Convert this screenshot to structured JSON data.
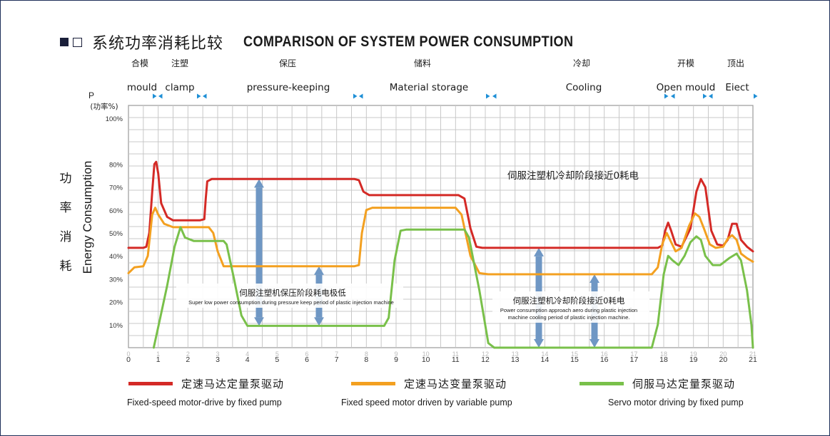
{
  "title_cn": "系统功率消耗比较",
  "title_en": "COMPARISON OF SYSTEM POWER CONSUMPTION",
  "colors": {
    "fixed": "#d42a26",
    "variable": "#f3a020",
    "servo": "#79c04a",
    "arrow": "#6f97c4",
    "grid": "#c8c8c8",
    "axis": "#9a9a9a",
    "marker": "#1e8fd6"
  },
  "chart_data": {
    "type": "line",
    "title": "COMPARISON OF SYSTEM POWER CONSUMPTION",
    "xlim": [
      0,
      21
    ],
    "ylim": [
      0,
      100
    ],
    "x_ticks": [
      "0",
      "1",
      "2",
      "3",
      "4",
      "5",
      "6",
      "7",
      "8",
      "9",
      "10",
      "11",
      "12",
      "13",
      "14",
      "15",
      "16",
      "17",
      "18",
      "19",
      "20",
      "21"
    ],
    "y_ticks": [
      "10%",
      "20%",
      "30%",
      "40%",
      "50%",
      "60%",
      "70%",
      "80%",
      "100%"
    ],
    "ylabel_top": "P",
    "ylabel_unit": "(功率%)",
    "ylabel_cn": [
      "功",
      "率",
      "消",
      "耗"
    ],
    "ylabel_en": "Energy Consumption",
    "phases": [
      {
        "cn": "合模",
        "en": "mould"
      },
      {
        "cn": "注塑",
        "en": "clamp"
      },
      {
        "cn": "保压",
        "en": "pressure-keeping"
      },
      {
        "cn": "储料",
        "en": "Material storage"
      },
      {
        "cn": "冷却",
        "en": "Cooling"
      },
      {
        "cn": "开模",
        "en": "Open mould"
      },
      {
        "cn": "顶出",
        "en": "Eiect"
      }
    ],
    "series": [
      {
        "name": "Fixed-speed motor-drive by fixed pump",
        "name_cn": "定速马达定量泵驱动",
        "color": "#d42a26",
        "points": [
          [
            0,
            43.5
          ],
          [
            0.5,
            43.5
          ],
          [
            0.6,
            44
          ],
          [
            0.7,
            50
          ],
          [
            0.8,
            68
          ],
          [
            0.87,
            80
          ],
          [
            0.93,
            81
          ],
          [
            1.0,
            76
          ],
          [
            1.1,
            63
          ],
          [
            1.3,
            57
          ],
          [
            1.5,
            55.5
          ],
          [
            2.4,
            55.5
          ],
          [
            2.55,
            56
          ],
          [
            2.6,
            65
          ],
          [
            2.65,
            72.5
          ],
          [
            2.8,
            73.5
          ],
          [
            7.6,
            73.5
          ],
          [
            7.75,
            73
          ],
          [
            7.9,
            68
          ],
          [
            8.1,
            66.5
          ],
          [
            11.1,
            66.5
          ],
          [
            11.3,
            65
          ],
          [
            11.5,
            52
          ],
          [
            11.7,
            44
          ],
          [
            11.9,
            43.5
          ],
          [
            17.8,
            43.5
          ],
          [
            17.95,
            44.5
          ],
          [
            18.05,
            51
          ],
          [
            18.15,
            54.5
          ],
          [
            18.25,
            51
          ],
          [
            18.4,
            45
          ],
          [
            18.6,
            44
          ],
          [
            18.9,
            52
          ],
          [
            19.1,
            68
          ],
          [
            19.25,
            73.5
          ],
          [
            19.4,
            70
          ],
          [
            19.6,
            51
          ],
          [
            19.8,
            45
          ],
          [
            20.0,
            44.5
          ],
          [
            20.15,
            47
          ],
          [
            20.3,
            54
          ],
          [
            20.45,
            54
          ],
          [
            20.6,
            47
          ],
          [
            20.8,
            44
          ],
          [
            21,
            42
          ]
        ]
      },
      {
        "name": "Fixed speed motor driven by variable pump",
        "name_cn": "定速马达变量泵驱动",
        "color": "#f3a020",
        "points": [
          [
            0,
            32.5
          ],
          [
            0.2,
            35
          ],
          [
            0.5,
            35.5
          ],
          [
            0.65,
            40
          ],
          [
            0.8,
            58
          ],
          [
            0.9,
            61
          ],
          [
            1.0,
            58
          ],
          [
            1.2,
            54
          ],
          [
            1.5,
            52.5
          ],
          [
            2.7,
            52.5
          ],
          [
            2.85,
            50
          ],
          [
            3.0,
            42
          ],
          [
            3.2,
            35.5
          ],
          [
            7.6,
            35.5
          ],
          [
            7.75,
            36
          ],
          [
            7.85,
            50
          ],
          [
            8.0,
            60
          ],
          [
            8.2,
            61
          ],
          [
            11.0,
            61
          ],
          [
            11.2,
            58
          ],
          [
            11.5,
            40
          ],
          [
            11.8,
            32.5
          ],
          [
            12.1,
            32
          ],
          [
            17.6,
            32
          ],
          [
            17.8,
            35
          ],
          [
            17.95,
            45
          ],
          [
            18.1,
            50
          ],
          [
            18.25,
            46
          ],
          [
            18.4,
            42
          ],
          [
            18.6,
            43.5
          ],
          [
            18.85,
            53
          ],
          [
            19.05,
            58.5
          ],
          [
            19.2,
            57
          ],
          [
            19.35,
            52
          ],
          [
            19.55,
            45
          ],
          [
            19.75,
            43.5
          ],
          [
            20.0,
            44
          ],
          [
            20.15,
            47.5
          ],
          [
            20.3,
            49
          ],
          [
            20.45,
            47
          ],
          [
            20.6,
            41
          ],
          [
            20.8,
            39
          ],
          [
            21,
            37.5
          ]
        ]
      },
      {
        "name": "Servo motor driving by fixed pump",
        "name_cn": "伺服马达定量泵驱动",
        "color": "#79c04a",
        "points": [
          [
            0.85,
            0
          ],
          [
            0.9,
            3
          ],
          [
            1.05,
            12
          ],
          [
            1.3,
            27
          ],
          [
            1.55,
            44
          ],
          [
            1.75,
            52.5
          ],
          [
            1.9,
            48
          ],
          [
            2.2,
            46.5
          ],
          [
            3.2,
            46.5
          ],
          [
            3.3,
            45
          ],
          [
            3.55,
            30
          ],
          [
            3.8,
            14
          ],
          [
            4.0,
            9.5
          ],
          [
            8.6,
            9.5
          ],
          [
            8.75,
            13
          ],
          [
            8.95,
            38
          ],
          [
            9.15,
            51
          ],
          [
            9.35,
            51.5
          ],
          [
            11.3,
            51.5
          ],
          [
            11.45,
            48
          ],
          [
            11.8,
            25
          ],
          [
            12.1,
            2
          ],
          [
            12.3,
            0
          ],
          [
            17.6,
            0
          ],
          [
            17.8,
            10
          ],
          [
            18.0,
            32
          ],
          [
            18.15,
            40
          ],
          [
            18.3,
            38
          ],
          [
            18.5,
            36
          ],
          [
            18.7,
            40
          ],
          [
            18.9,
            46
          ],
          [
            19.1,
            48.5
          ],
          [
            19.25,
            47
          ],
          [
            19.4,
            40
          ],
          [
            19.65,
            36
          ],
          [
            19.9,
            36
          ],
          [
            20.2,
            39
          ],
          [
            20.45,
            41
          ],
          [
            20.6,
            38
          ],
          [
            20.8,
            25
          ],
          [
            20.95,
            10
          ],
          [
            21,
            0
          ]
        ]
      }
    ],
    "annotations": [
      {
        "cn": "伺服注塑机保压阶段耗电极低",
        "en": "Super low power consumption during pressure keep period of plastic injection machine"
      },
      {
        "cn": "伺服注塑机冷却阶段接近0耗电",
        "en1": "Power consumption approach aero during plastic injection",
        "en2": "machine cooling period of plastic injection machine."
      },
      {
        "cn": "伺服注塑机冷却阶段接近0耗电"
      }
    ]
  }
}
